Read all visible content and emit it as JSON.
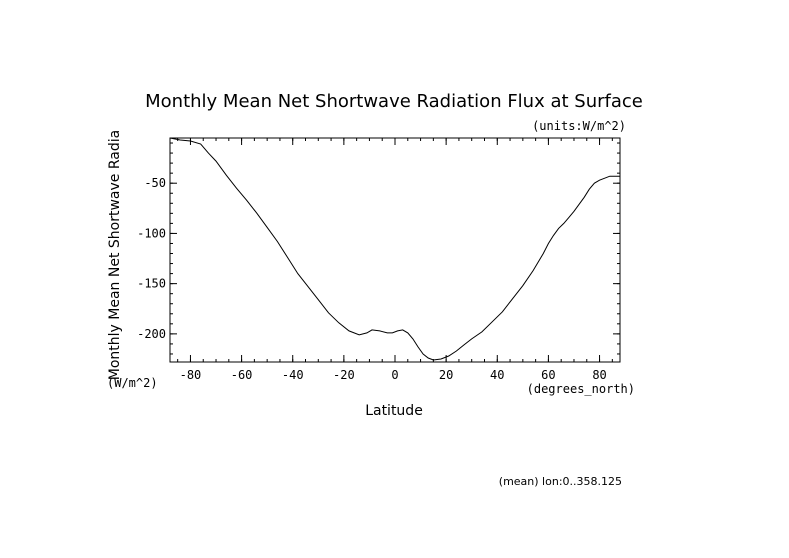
{
  "chart_data": {
    "type": "line",
    "title": "Monthly Mean Net Shortwave Radiation Flux at Surface",
    "units_note": "(units:W/m^2)",
    "xlabel": "Latitude",
    "x_units": "(degrees_north)",
    "ylabel": "Monthly Mean Net Shortwave Radia",
    "y_units": "(W/m^2)",
    "footer": "(mean) lon:0..358.125",
    "xlim": [
      -88,
      88
    ],
    "ylim": [
      -228,
      -5
    ],
    "xticks": [
      -80,
      -60,
      -40,
      -20,
      0,
      20,
      40,
      60,
      80
    ],
    "yticks": [
      -50,
      -100,
      -150,
      -200
    ],
    "x_minor_step": 5,
    "y_minor_step": 10,
    "grid": false,
    "series": [
      {
        "x": [
          -88,
          -84,
          -80,
          -76,
          -73,
          -70,
          -66,
          -62,
          -58,
          -54,
          -50,
          -46,
          -42,
          -38,
          -34,
          -30,
          -26,
          -22,
          -18,
          -14,
          -11,
          -9,
          -6,
          -3,
          -1,
          1,
          3,
          5,
          7,
          9,
          11,
          13,
          15,
          18,
          21,
          24,
          27,
          30,
          34,
          38,
          42,
          46,
          50,
          54,
          58,
          60,
          62,
          64,
          66,
          68,
          70,
          72,
          74,
          76,
          78,
          80,
          82,
          84,
          86,
          88
        ],
        "y": [
          -5,
          -7,
          -8,
          -11,
          -20,
          -28,
          -42,
          -55,
          -67,
          -80,
          -94,
          -108,
          -124,
          -140,
          -153,
          -166,
          -179,
          -189,
          -197,
          -201,
          -199,
          -196,
          -197,
          -199,
          -199,
          -197,
          -196,
          -199,
          -205,
          -213,
          -220,
          -224,
          -226,
          -225,
          -222,
          -217,
          -211,
          -205,
          -198,
          -188,
          -178,
          -165,
          -152,
          -137,
          -120,
          -110,
          -102,
          -95,
          -90,
          -84,
          -78,
          -71,
          -64,
          -56,
          -50,
          -47,
          -45,
          -43,
          -43,
          -43
        ]
      }
    ]
  }
}
